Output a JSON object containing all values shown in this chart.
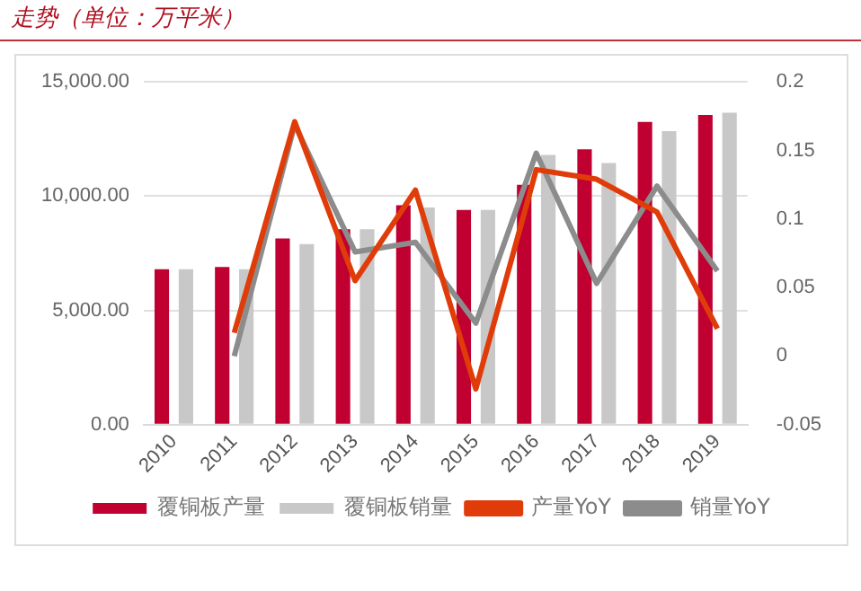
{
  "chart_data": {
    "type": "bar",
    "title": "走势（单位：万平米）",
    "categories": [
      "2010",
      "2011",
      "2012",
      "2013",
      "2014",
      "2015",
      "2016",
      "2017",
      "2018",
      "2019"
    ],
    "series": [
      {
        "name": "覆铜板产量",
        "color": "#c00030",
        "values": [
          6800,
          6900,
          8150,
          8550,
          9600,
          9400,
          10500,
          12050,
          13250,
          13550
        ]
      },
      {
        "name": "覆铜板销量",
        "color": "#c8c8c8",
        "values": [
          6800,
          6800,
          7900,
          8550,
          9500,
          9400,
          11800,
          11450,
          12850,
          13650
        ]
      },
      {
        "name": "产量YoY",
        "type": "line",
        "axis": "y2",
        "color": "#e03c0a",
        "values": [
          null,
          0.017,
          0.171,
          0.055,
          0.121,
          -0.024,
          0.136,
          0.129,
          0.105,
          0.02
        ]
      },
      {
        "name": "销量YoY",
        "type": "line",
        "axis": "y2",
        "color": "#8c8c8c",
        "values": [
          null,
          0.0,
          0.169,
          0.076,
          0.083,
          0.024,
          0.148,
          0.053,
          0.124,
          0.062
        ]
      }
    ],
    "ylim": [
      0,
      15000
    ],
    "yticks": [
      {
        "value": 0,
        "label": "0.00"
      },
      {
        "value": 5000,
        "label": "5,000.00"
      },
      {
        "value": 10000,
        "label": "10,000.00"
      },
      {
        "value": 15000,
        "label": "15,000.00"
      }
    ],
    "y2lim": [
      -0.05,
      0.2
    ],
    "y2ticks": [
      -0.05,
      0,
      0.05,
      0.1,
      0.15,
      0.2
    ],
    "grid": "y",
    "legend": "bottom",
    "marker": "none",
    "line_style": "solid"
  }
}
